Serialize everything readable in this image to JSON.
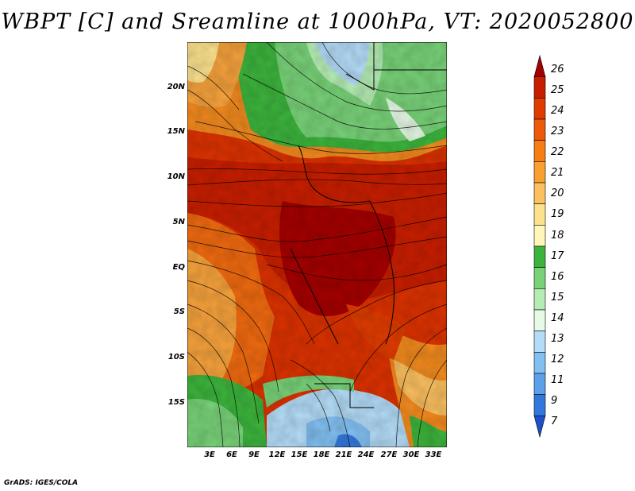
{
  "title": "WBPT [C] and Sreamline at 1000hPa, VT: 2020052800",
  "credit": "GrADS: IGES/COLA",
  "lat_ticks": [
    "20N",
    "15N",
    "10N",
    "5N",
    "EQ",
    "5S",
    "10S",
    "15S"
  ],
  "lon_ticks": [
    "3E",
    "6E",
    "9E",
    "12E",
    "15E",
    "18E",
    "21E",
    "24E",
    "27E",
    "30E",
    "33E"
  ],
  "colorbar": {
    "labels": [
      "26",
      "25",
      "24",
      "23",
      "22",
      "21",
      "20",
      "19",
      "18",
      "17",
      "16",
      "15",
      "14",
      "13",
      "12",
      "11",
      "9",
      "7"
    ],
    "colors": [
      "#a50000",
      "#c81e00",
      "#e03c00",
      "#ee5a0a",
      "#f67e12",
      "#f9a030",
      "#fcc060",
      "#fde28e",
      "#fff6b8",
      "#3cb43c",
      "#78d278",
      "#b4ecb4",
      "#e6fae6",
      "#b4dcf8",
      "#82c0f2",
      "#5aa0ea",
      "#3278dc",
      "#1e50c8"
    ]
  },
  "map": {
    "region": "Central Africa",
    "field": "WBPT",
    "overlay": "streamlines"
  }
}
